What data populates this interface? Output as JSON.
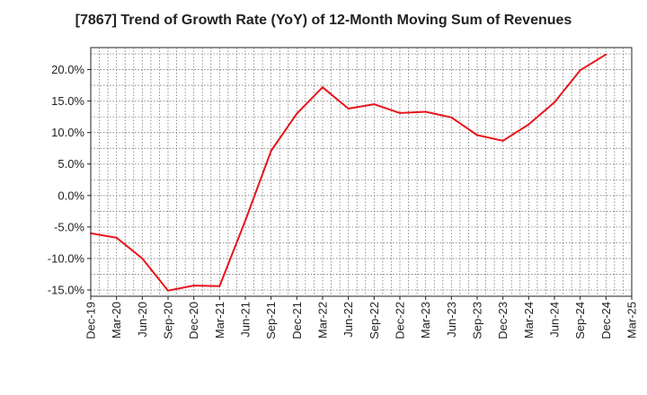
{
  "chart_data": {
    "type": "line",
    "title": "[7867]  Trend of Growth Rate (YoY) of 12-Month Moving Sum of Revenues",
    "xlabel": "",
    "ylabel": "",
    "x_tick_labels": [
      "Dec-19",
      "Mar-20",
      "Jun-20",
      "Sep-20",
      "Dec-20",
      "Mar-21",
      "Jun-21",
      "Sep-21",
      "Dec-21",
      "Mar-22",
      "Jun-22",
      "Sep-22",
      "Dec-22",
      "Mar-23",
      "Jun-23",
      "Sep-23",
      "Dec-23",
      "Mar-24",
      "Jun-24",
      "Sep-24",
      "Dec-24",
      "Mar-25"
    ],
    "y_tick_labels": [
      "-15.0%",
      "-10.0%",
      "-5.0%",
      "0.0%",
      "5.0%",
      "10.0%",
      "15.0%",
      "20.0%"
    ],
    "y_ticks": [
      -15,
      -10,
      -5,
      0,
      5,
      10,
      15,
      20
    ],
    "ylim": [
      -16.0,
      23.5
    ],
    "grid": true,
    "line_color": "#e8141c",
    "series": [
      {
        "x": [
          "Dec-19",
          "Mar-20",
          "Jun-20",
          "Sep-20",
          "Dec-20",
          "Mar-21",
          "Jun-21",
          "Sep-21",
          "Dec-21",
          "Mar-22",
          "Jun-22",
          "Sep-22",
          "Dec-22",
          "Mar-23",
          "Jun-23",
          "Sep-23",
          "Dec-23",
          "Mar-24",
          "Jun-24",
          "Sep-24",
          "Dec-24"
        ],
        "values": [
          -6.0,
          -6.7,
          -10.0,
          -15.1,
          -14.3,
          -14.4,
          -4.0,
          7.1,
          13.0,
          17.2,
          13.8,
          14.5,
          13.1,
          13.3,
          12.4,
          9.6,
          8.7,
          11.3,
          14.8,
          19.9,
          22.4
        ]
      }
    ]
  }
}
